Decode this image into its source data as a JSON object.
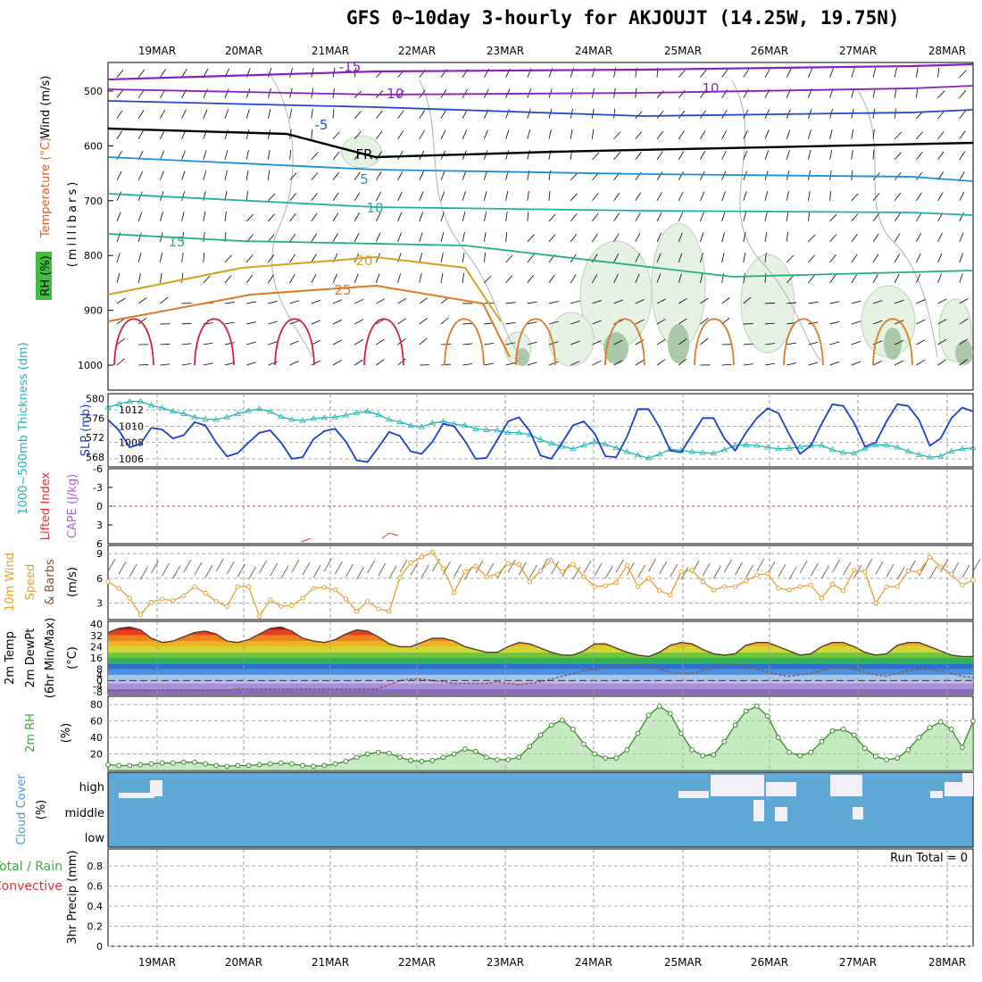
{
  "title": "GFS 0~10day 3-hourly for AKJOUJT (14.25W, 19.75N)",
  "dates": [
    "19MAR",
    "20MAR",
    "21MAR",
    "22MAR",
    "23MAR",
    "24MAR",
    "25MAR",
    "26MAR",
    "27MAR",
    "28MAR"
  ],
  "panels": {
    "upper": {
      "ylabel_wind": "Wind (m/s)",
      "ylabel_temp": "Temperature (°C)",
      "ylabel_rh": "RH (%)",
      "ylabel_units": "(millibars)",
      "ticks": [
        500,
        600,
        700,
        800,
        900,
        1000
      ],
      "contour_labels": [
        "-15",
        "-10",
        "-5",
        "FR",
        "5",
        "10",
        "15",
        "20",
        "25",
        "10"
      ]
    },
    "sfc": {
      "ylabel_thick": "1000~500mb Thickness (dm)",
      "ylabel_slp": "SLP (mb)",
      "ticks_left": [
        568,
        572,
        576,
        580
      ],
      "ticks_right": [
        1006,
        1008,
        1010,
        1012
      ]
    },
    "cape": {
      "ylabel_li": "Lifted Index",
      "ylabel_cape": "CAPE (J/kg)",
      "ticks": [
        -6,
        -3,
        0,
        3,
        6
      ]
    },
    "wind10": {
      "ylabel_a": "10m Wind",
      "ylabel_b": "Speed",
      "ylabel_c": "& Barbs",
      "ylabel_unit": "(m/s)",
      "ticks": [
        3,
        6,
        9
      ]
    },
    "temp": {
      "ylabel_a": "2m Temp",
      "ylabel_b": "2m DewPt",
      "ylabel_c": "(6hr Min/Max)",
      "ylabel_unit": "(°C)",
      "ticks": [
        -8,
        -4,
        0,
        4,
        8,
        16,
        24,
        32,
        40
      ]
    },
    "rh": {
      "ylabel": "2m RH",
      "ylabel_unit": "(%)",
      "ticks": [
        20,
        40,
        60,
        80
      ]
    },
    "cloud": {
      "ylabel": "Cloud Cover",
      "ylabel_unit": "(%)",
      "levels": [
        "high",
        "middle",
        "low"
      ]
    },
    "precip": {
      "ylabel_a": "3hr Precip (mm)",
      "legend_a": "Total / Rain",
      "legend_b": "Convective",
      "run_total": "Run Total = 0",
      "ticks": [
        0,
        0.2,
        0.4,
        0.6,
        0.8
      ]
    }
  },
  "colors": {
    "slp": "#1a3fcc",
    "thickness": "#22b5b5",
    "wind_speed": "#e8a030",
    "rh_line": "#3a8a2a",
    "cloud_bg": "#5fa8d3",
    "cloud_fill": "#f3eff8",
    "lifted_index": "#dd3333"
  },
  "chart_data": [
    {
      "type": "line",
      "name": "slp",
      "ylabel": "SLP (mb)",
      "ylim": [
        1005,
        1014
      ],
      "values": [
        1010.8,
        1009.5,
        1007.4,
        1007.8,
        1009.8,
        1009.6,
        1008.5,
        1008.9,
        1010.5,
        1010.1,
        1008.0,
        1006.3,
        1006.7,
        1008.0,
        1009.2,
        1009.5,
        1008.0,
        1006.0,
        1006.2,
        1008.4,
        1009.4,
        1009.7,
        1008.1,
        1005.8,
        1005.6,
        1007.4,
        1009.3,
        1008.8,
        1006.9,
        1006.6,
        1008.1,
        1010.3,
        1010.0,
        1008.2,
        1006.0,
        1006.1,
        1008.3,
        1010.6,
        1011.1,
        1009.4,
        1006.4,
        1006.0,
        1008.0,
        1010.1,
        1010.6,
        1009.1,
        1006.3,
        1006.2,
        1008.7,
        1012.1,
        1012.1,
        1009.9,
        1007.0,
        1006.8,
        1008.9,
        1011.0,
        1011.0,
        1008.5,
        1007.0,
        1009.2,
        1011.0,
        1012.2,
        1011.6,
        1009.0,
        1006.6,
        1007.6,
        1010.3,
        1012.7,
        1012.5,
        1010.4,
        1007.5,
        1008.0,
        1010.6,
        1012.7,
        1012.5,
        1010.8,
        1007.6,
        1008.5,
        1011.0,
        1012.3,
        1011.8
      ]
    },
    {
      "type": "line",
      "name": "thickness",
      "ylabel": "1000~500mb Thickness (dm)",
      "ylim": [
        566,
        581
      ],
      "values": [
        578.2,
        578.9,
        579.4,
        579.4,
        578.6,
        578.1,
        577.4,
        576.9,
        576.2,
        575.8,
        575.7,
        576.2,
        576.9,
        577.5,
        577.9,
        577.3,
        576.3,
        575.7,
        575.5,
        575.9,
        576.1,
        576.2,
        576.6,
        577.1,
        577.4,
        576.7,
        575.7,
        575.2,
        574.5,
        574.2,
        575.0,
        575.3,
        574.8,
        574.5,
        573.8,
        573.6,
        573.5,
        573.0,
        573.0,
        572.6,
        571.6,
        570.8,
        570.2,
        569.7,
        570.4,
        571.1,
        570.6,
        569.9,
        569.1,
        568.4,
        567.8,
        568.6,
        569.6,
        569.4,
        569.1,
        568.9,
        568.8,
        569.5,
        570.4,
        570.5,
        570.4,
        570.0,
        569.7,
        569.8,
        570.1,
        570.4,
        570.4,
        569.5,
        568.9,
        568.8,
        569.8,
        570.5,
        570.5,
        570.0,
        569.2,
        568.5,
        568.0,
        568.2,
        569.2,
        569.7,
        569.9
      ]
    },
    {
      "type": "line",
      "name": "10m wind speed",
      "ylabel": "(m/s)",
      "ylim": [
        1,
        10
      ],
      "values": [
        5.6,
        4.8,
        3.6,
        1.6,
        3.1,
        3.5,
        3.3,
        3.9,
        5.0,
        4.2,
        3.2,
        2.6,
        5.0,
        5.0,
        1.4,
        3.4,
        2.6,
        2.7,
        3.6,
        4.8,
        4.9,
        4.6,
        3.5,
        2.0,
        3.2,
        2.3,
        2.0,
        6.1,
        7.9,
        8.6,
        9.2,
        7.2,
        4.3,
        6.8,
        7.5,
        6.2,
        6.5,
        7.8,
        7.7,
        5.6,
        6.9,
        8.2,
        6.8,
        7.7,
        6.2,
        5.0,
        5.1,
        5.5,
        7.6,
        5.0,
        6.0,
        4.5,
        4.0,
        6.8,
        7.0,
        5.6,
        4.6,
        5.0,
        5.0,
        5.7,
        6.4,
        6.6,
        4.8,
        4.6,
        5.0,
        5.2,
        3.6,
        5.3,
        4.5,
        7.0,
        6.8,
        3.0,
        5.0,
        5.0,
        6.9,
        6.8,
        8.6,
        7.4,
        6.5,
        5.2,
        5.8
      ]
    },
    {
      "type": "line",
      "name": "2m temperature",
      "ylabel": "(°C)",
      "ylim": [
        -10,
        42
      ],
      "values": [
        34,
        37,
        38,
        36,
        30,
        27,
        28,
        31,
        34,
        35,
        33,
        28,
        27,
        29,
        33,
        37,
        38,
        35,
        30,
        28,
        27,
        29,
        33,
        36,
        35,
        31,
        26,
        24,
        24,
        27,
        30,
        30,
        28,
        24,
        22,
        20,
        20,
        24,
        27,
        26,
        23,
        20,
        18,
        18,
        21,
        26,
        26,
        23,
        20,
        18,
        17,
        20,
        25,
        27,
        26,
        22,
        19,
        18,
        19,
        25,
        27,
        27,
        24,
        21,
        18,
        19,
        24,
        27,
        27,
        24,
        20,
        18,
        19,
        25,
        27,
        27,
        24,
        21,
        18,
        17,
        17
      ]
    },
    {
      "type": "line",
      "name": "2m dewpoint",
      "ylabel": "(°C)",
      "ylim": [
        -10,
        42
      ],
      "values": [
        -7,
        -7,
        -7,
        -7,
        -7,
        -7,
        -7,
        -7,
        -7,
        -7,
        -7,
        -7,
        -6,
        -6,
        -6,
        -6,
        -6,
        -6,
        -6,
        -6,
        -6,
        -6,
        -6,
        -6,
        -6,
        -6,
        -3,
        0,
        1,
        1,
        0,
        -1,
        -2,
        -2,
        -2,
        -2,
        -1,
        -2,
        -3,
        -2,
        -1,
        1,
        3,
        5,
        7,
        8,
        9,
        10,
        11,
        11,
        10,
        8,
        6,
        5,
        5,
        7,
        9,
        11,
        11,
        10,
        8,
        6,
        4,
        3,
        4,
        5,
        7,
        9,
        9,
        8,
        6,
        4,
        3,
        5,
        7,
        8,
        8,
        7,
        5,
        3,
        2
      ]
    },
    {
      "type": "line",
      "name": "2m RH",
      "ylabel": "(%)",
      "ylim": [
        0,
        90
      ],
      "values": [
        7,
        6,
        6,
        7,
        8,
        9,
        9,
        10,
        10,
        8,
        6,
        5,
        6,
        6,
        7,
        8,
        9,
        8,
        6,
        5,
        6,
        8,
        11,
        16,
        20,
        22,
        21,
        16,
        12,
        11,
        12,
        16,
        20,
        26,
        23,
        16,
        13,
        13,
        16,
        29,
        43,
        55,
        61,
        50,
        32,
        20,
        15,
        15,
        25,
        45,
        67,
        78,
        69,
        45,
        25,
        18,
        19,
        35,
        55,
        72,
        78,
        66,
        40,
        22,
        18,
        22,
        35,
        48,
        50,
        43,
        27,
        17,
        13,
        15,
        25,
        40,
        52,
        59,
        50,
        28,
        60
      ]
    }
  ]
}
